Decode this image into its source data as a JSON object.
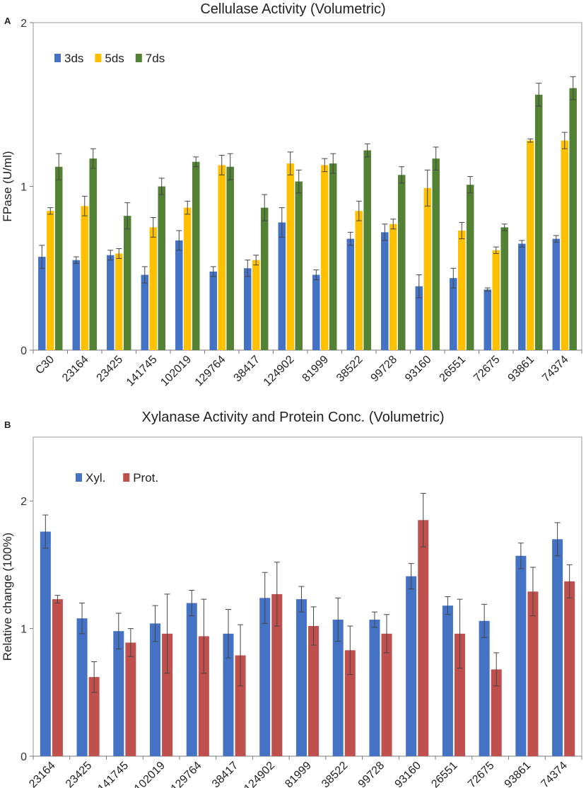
{
  "chart_data": [
    {
      "panel": "A",
      "type": "bar",
      "title": "Cellulase Activity (Volumetric)",
      "xlabel": "",
      "ylabel": "FPase (U/ml)",
      "ylim": [
        0,
        2
      ],
      "yticks": [
        0,
        1,
        2
      ],
      "grid": false,
      "legend_position": "top-left",
      "categories": [
        "C30",
        "23164",
        "23425",
        "141745",
        "102019",
        "129764",
        "38417",
        "124902",
        "81999",
        "38522",
        "99728",
        "93160",
        "26551",
        "72675",
        "93861",
        "74374"
      ],
      "series": [
        {
          "name": "3ds",
          "color": "#4472c4",
          "values": [
            0.57,
            0.55,
            0.58,
            0.46,
            0.67,
            0.48,
            0.5,
            0.78,
            0.46,
            0.68,
            0.72,
            0.39,
            0.44,
            0.37,
            0.65,
            0.68
          ],
          "errors": [
            0.07,
            0.02,
            0.03,
            0.05,
            0.06,
            0.03,
            0.05,
            0.09,
            0.03,
            0.04,
            0.05,
            0.07,
            0.06,
            0.01,
            0.02,
            0.02
          ]
        },
        {
          "name": "5ds",
          "color": "#ffc000",
          "values": [
            0.85,
            0.88,
            0.59,
            0.75,
            0.87,
            1.13,
            0.55,
            1.14,
            1.13,
            0.85,
            0.77,
            0.99,
            0.73,
            0.61,
            1.28,
            1.28
          ],
          "errors": [
            0.02,
            0.06,
            0.03,
            0.06,
            0.04,
            0.06,
            0.03,
            0.07,
            0.04,
            0.06,
            0.03,
            0.11,
            0.05,
            0.02,
            0.01,
            0.05
          ]
        },
        {
          "name": "7ds",
          "color": "#548235",
          "values": [
            1.12,
            1.17,
            0.82,
            1.0,
            1.15,
            1.12,
            0.87,
            1.03,
            1.14,
            1.22,
            1.07,
            1.17,
            1.01,
            0.75,
            1.56,
            1.6
          ],
          "errors": [
            0.08,
            0.06,
            0.08,
            0.05,
            0.03,
            0.08,
            0.08,
            0.07,
            0.06,
            0.04,
            0.05,
            0.07,
            0.05,
            0.02,
            0.07,
            0.07
          ]
        }
      ]
    },
    {
      "panel": "B",
      "type": "bar",
      "title": "Xylanase Activity and Protein Conc. (Volumetric)",
      "xlabel": "",
      "ylabel": "Relative change (100%)",
      "ylim": [
        0,
        2.5
      ],
      "yticks": [
        0,
        1,
        2
      ],
      "grid": false,
      "legend_position": "top-left",
      "categories": [
        "23164",
        "23425",
        "141745",
        "102019",
        "129764",
        "38417",
        "124902",
        "81999",
        "38522",
        "99728",
        "93160",
        "26551",
        "72675",
        "93861",
        "74374"
      ],
      "series": [
        {
          "name": "Xyl.",
          "color": "#4472c4",
          "values": [
            1.76,
            1.08,
            0.98,
            1.04,
            1.2,
            0.96,
            1.24,
            1.23,
            1.07,
            1.07,
            1.41,
            1.18,
            1.06,
            1.57,
            1.7
          ],
          "errors": [
            0.13,
            0.12,
            0.14,
            0.14,
            0.1,
            0.19,
            0.2,
            0.1,
            0.17,
            0.06,
            0.1,
            0.07,
            0.13,
            0.1,
            0.13
          ]
        },
        {
          "name": "Prot.",
          "color": "#c0504d",
          "values": [
            1.23,
            0.62,
            0.89,
            0.96,
            0.94,
            0.79,
            1.27,
            1.02,
            0.83,
            0.96,
            1.85,
            0.96,
            0.68,
            1.29,
            1.37
          ],
          "errors": [
            0.03,
            0.12,
            0.11,
            0.31,
            0.29,
            0.24,
            0.25,
            0.15,
            0.19,
            0.15,
            0.21,
            0.27,
            0.13,
            0.19,
            0.13
          ]
        }
      ]
    }
  ]
}
